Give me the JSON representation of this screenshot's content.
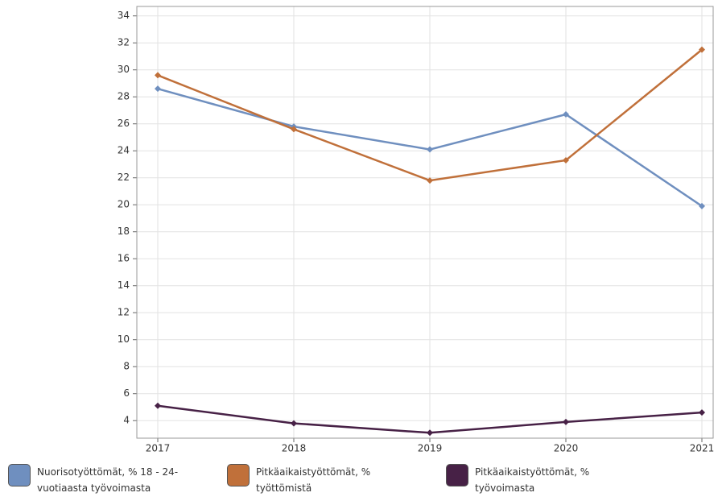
{
  "chart_data": {
    "type": "line",
    "categories": [
      "2017",
      "2018",
      "2019",
      "2020",
      "2021"
    ],
    "series": [
      {
        "name": "Nuorisotyöttömät, % 18 - 24-vuotiaasta työvoimasta",
        "color": "#6f8fbf",
        "values": [
          28.6,
          25.8,
          24.1,
          26.7,
          19.9
        ]
      },
      {
        "name": "Pitkäaikaistyöttömät, % työttömistä",
        "color": "#c0703a",
        "values": [
          29.6,
          25.6,
          21.8,
          23.3,
          31.5
        ]
      },
      {
        "name": "Pitkäaikaistyöttömät, % työvoimasta",
        "color": "#472146",
        "values": [
          5.1,
          3.8,
          3.1,
          3.9,
          4.6
        ]
      }
    ],
    "ylim": [
      2.7,
      34.7
    ],
    "yticks": [
      4,
      6,
      8,
      10,
      12,
      14,
      16,
      18,
      20,
      22,
      24,
      26,
      28,
      30,
      32,
      34
    ],
    "grid": true
  }
}
